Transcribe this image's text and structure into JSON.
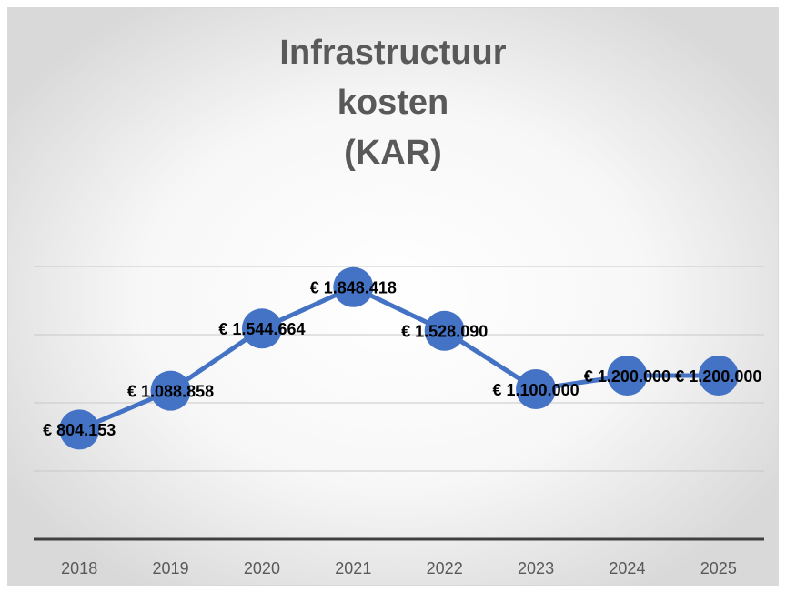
{
  "chart_data": {
    "type": "line",
    "title": [
      "Infrastructuur",
      "kosten",
      "(KAR)"
    ],
    "categories": [
      "2018",
      "2019",
      "2020",
      "2021",
      "2022",
      "2023",
      "2024",
      "2025"
    ],
    "series": [
      {
        "name": "Infrastructuur kosten",
        "color": "#4472c4",
        "values": [
          804153,
          1088858,
          1544664,
          1848418,
          1528090,
          1100000,
          1200000,
          1200000
        ],
        "value_labels": [
          "€ 804.153",
          "€ 1.088.858",
          "€ 1.544.664",
          "€ 1.848.418",
          "€ 1.528.090",
          "€ 1.100.000",
          "€ 1.200.000",
          "€ 1.200.000"
        ]
      }
    ],
    "ylim": [
      0,
      2000000
    ],
    "yticks": [
      500000,
      1000000,
      1500000,
      2000000
    ],
    "grid": true
  }
}
